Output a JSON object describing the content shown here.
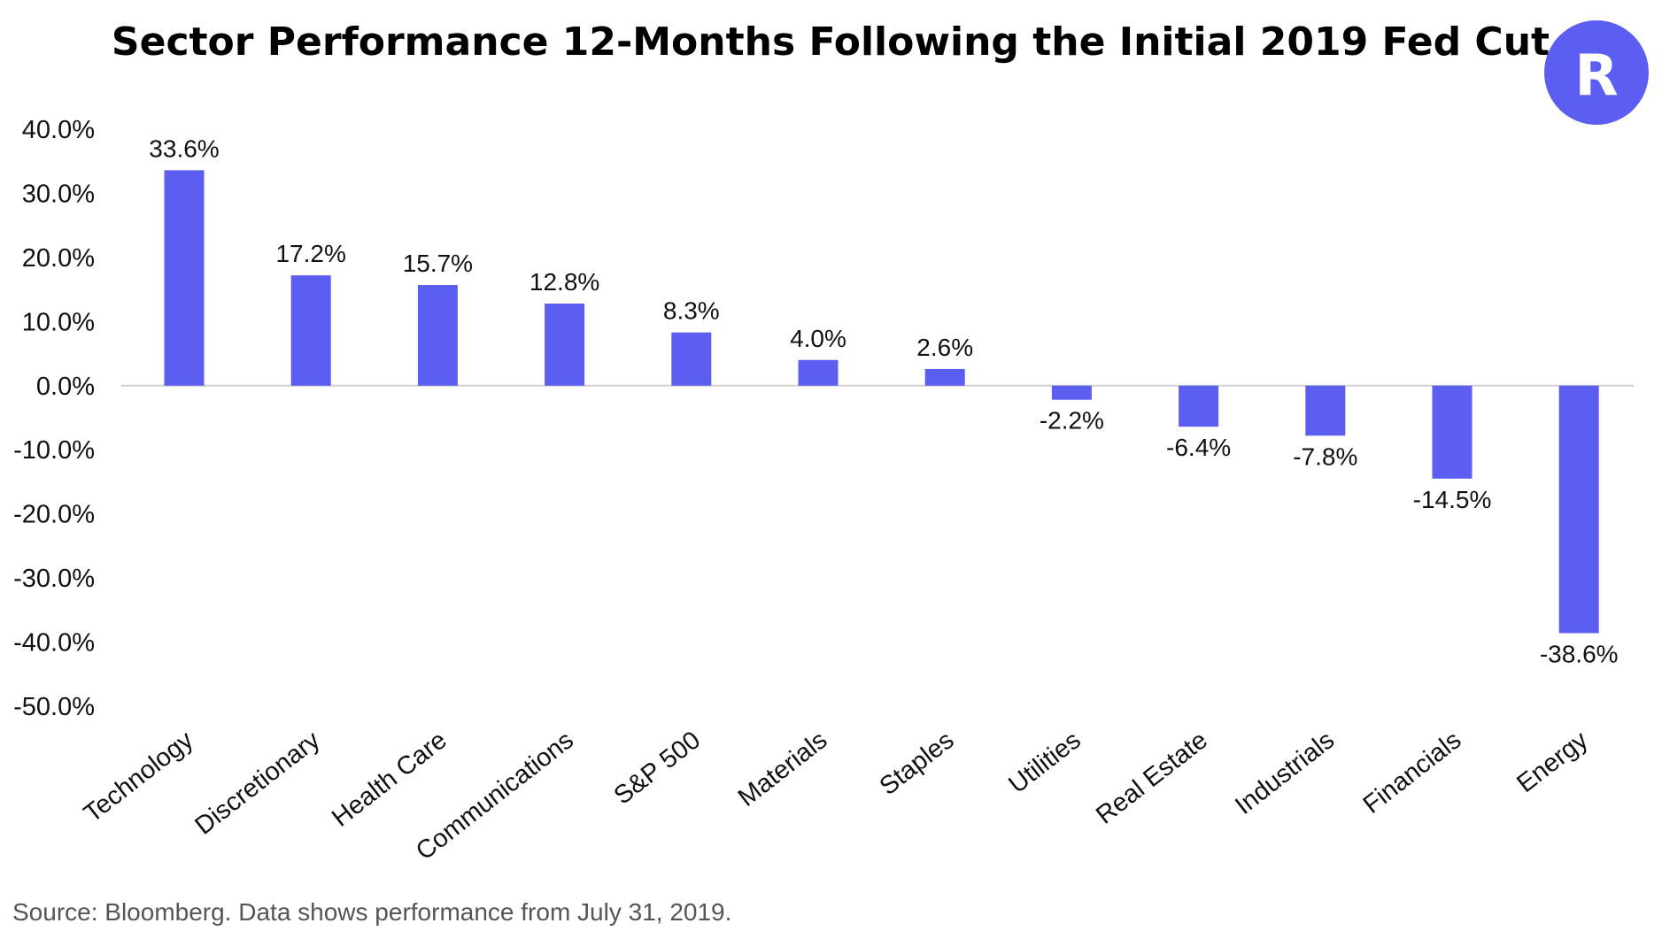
{
  "chart_data": {
    "type": "bar",
    "title": "Sector Performance 12-Months Following the Initial 2019 Fed Cut",
    "categories": [
      "Technology",
      "Discretionary",
      "Health Care",
      "Communications",
      "S&P 500",
      "Materials",
      "Staples",
      "Utilities",
      "Real Estate",
      "Industrials",
      "Financials",
      "Energy"
    ],
    "values": [
      33.6,
      17.2,
      15.7,
      12.8,
      8.3,
      4.0,
      2.6,
      -2.2,
      -6.4,
      -7.8,
      -14.5,
      -38.6
    ],
    "data_labels": [
      "33.6%",
      "17.2%",
      "15.7%",
      "12.8%",
      "8.3%",
      "4.0%",
      "2.6%",
      "-2.2%",
      "-6.4%",
      "-7.8%",
      "-14.5%",
      "-38.6%"
    ],
    "y_ticks": [
      40,
      30,
      20,
      10,
      0,
      -10,
      -20,
      -30,
      -40,
      -50
    ],
    "y_tick_labels": [
      "40.0%",
      "30.0%",
      "20.0%",
      "10.0%",
      "0.0%",
      "-10.0%",
      "-20.0%",
      "-30.0%",
      "-40.0%",
      "-50.0%"
    ],
    "ylim": [
      -50,
      40
    ],
    "grid": false,
    "legend": "none",
    "bar_color": "#5b5ef0",
    "source": "Source: Bloomberg. Data shows performance from July 31, 2019."
  },
  "logo": {
    "icon": "robinhood-style-logo-icon",
    "letter": "R",
    "color": "#5b5ef0"
  }
}
